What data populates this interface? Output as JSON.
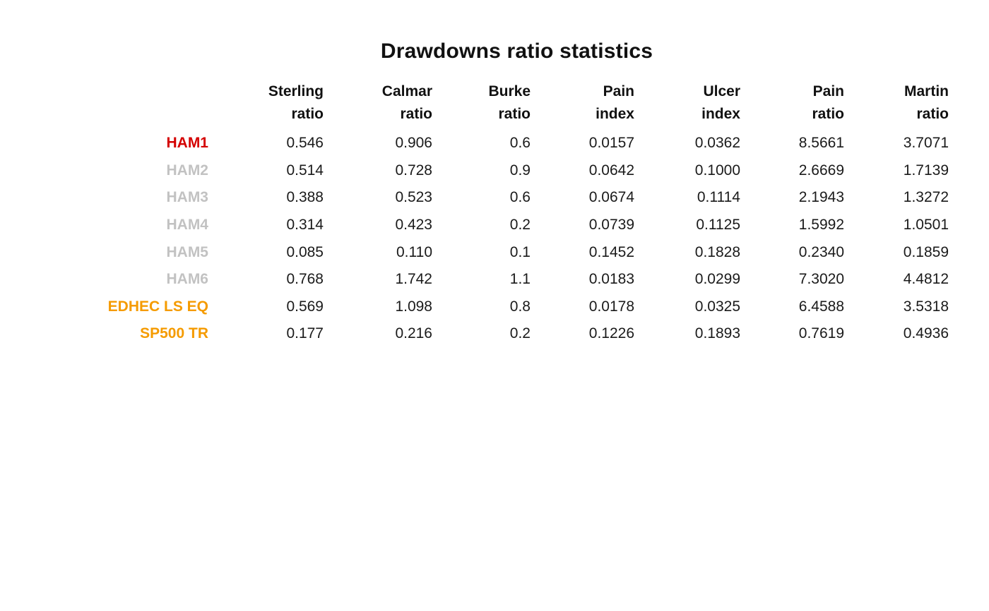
{
  "title": "Drawdowns ratio statistics",
  "colors": {
    "title": "#111111",
    "header_text": "#111111",
    "value_text": "#1a1a1a",
    "row_ham1": "#d40000",
    "row_ham_other": "#c2c2c2",
    "row_benchmark": "#f59b00",
    "background": "#ffffff"
  },
  "chart_data": {
    "type": "table",
    "title": "Drawdowns ratio statistics",
    "legend_position": "none",
    "grid": false,
    "column_headers": [
      [
        "Sterling",
        "ratio"
      ],
      [
        "Calmar",
        "ratio"
      ],
      [
        "Burke",
        "ratio"
      ],
      [
        "Pain",
        "index"
      ],
      [
        "Ulcer",
        "index"
      ],
      [
        "Pain",
        "ratio"
      ],
      [
        "Martin",
        "ratio"
      ]
    ],
    "rows": [
      {
        "label": "HAM1",
        "color": "#d40000",
        "values": [
          "0.546",
          "0.906",
          "0.6",
          "0.0157",
          "0.0362",
          "8.5661",
          "3.7071"
        ]
      },
      {
        "label": "HAM2",
        "color": "#c2c2c2",
        "values": [
          "0.514",
          "0.728",
          "0.9",
          "0.0642",
          "0.1000",
          "2.6669",
          "1.7139"
        ]
      },
      {
        "label": "HAM3",
        "color": "#c2c2c2",
        "values": [
          "0.388",
          "0.523",
          "0.6",
          "0.0674",
          "0.1114",
          "2.1943",
          "1.3272"
        ]
      },
      {
        "label": "HAM4",
        "color": "#c2c2c2",
        "values": [
          "0.314",
          "0.423",
          "0.2",
          "0.0739",
          "0.1125",
          "1.5992",
          "1.0501"
        ]
      },
      {
        "label": "HAM5",
        "color": "#c2c2c2",
        "values": [
          "0.085",
          "0.110",
          "0.1",
          "0.1452",
          "0.1828",
          "0.2340",
          "0.1859"
        ]
      },
      {
        "label": "HAM6",
        "color": "#c2c2c2",
        "values": [
          "0.768",
          "1.742",
          "1.1",
          "0.0183",
          "0.0299",
          "7.3020",
          "4.4812"
        ]
      },
      {
        "label": "EDHEC LS EQ",
        "color": "#f59b00",
        "values": [
          "0.569",
          "1.098",
          "0.8",
          "0.0178",
          "0.0325",
          "6.4588",
          "3.5318"
        ]
      },
      {
        "label": "SP500 TR",
        "color": "#f59b00",
        "values": [
          "0.177",
          "0.216",
          "0.2",
          "0.1226",
          "0.1893",
          "0.7619",
          "0.4936"
        ]
      }
    ]
  }
}
